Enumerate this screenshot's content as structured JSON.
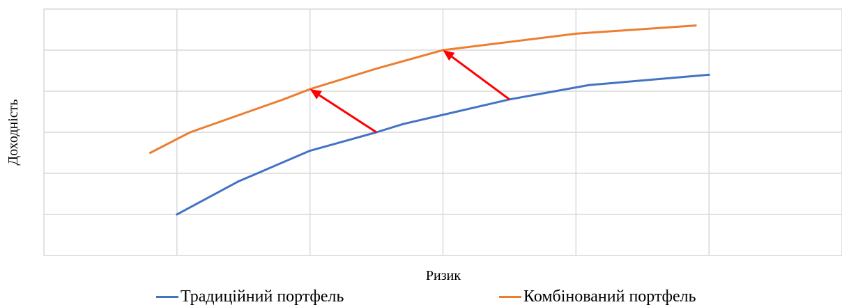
{
  "chart_data": {
    "type": "line",
    "xlabel": "Ризик",
    "ylabel": "Доходність",
    "xlim": [
      0,
      6
    ],
    "ylim": [
      0,
      6
    ],
    "grid": true,
    "legend_position": "bottom",
    "series": [
      {
        "name": "Традиційний портфель",
        "color": "#4472C4",
        "x": [
          1.0,
          1.46,
          2.0,
          2.5,
          2.7,
          3.5,
          4.1,
          5.0
        ],
        "y": [
          1.0,
          1.8,
          2.55,
          3.0,
          3.2,
          3.8,
          4.15,
          4.4
        ]
      },
      {
        "name": "Комбінований портфель",
        "color": "#ED7D31",
        "x": [
          0.8,
          1.1,
          1.8,
          2.0,
          2.5,
          3.0,
          4.0,
          4.9
        ],
        "y": [
          2.5,
          3.0,
          3.8,
          4.05,
          4.55,
          5.0,
          5.4,
          5.6
        ]
      }
    ],
    "annotations": [
      {
        "type": "arrow",
        "color": "#FF0000",
        "from": [
          2.5,
          3.0
        ],
        "to": [
          2.0,
          4.05
        ]
      },
      {
        "type": "arrow",
        "color": "#FF0000",
        "from": [
          3.5,
          3.8
        ],
        "to": [
          3.0,
          5.0
        ]
      }
    ]
  }
}
